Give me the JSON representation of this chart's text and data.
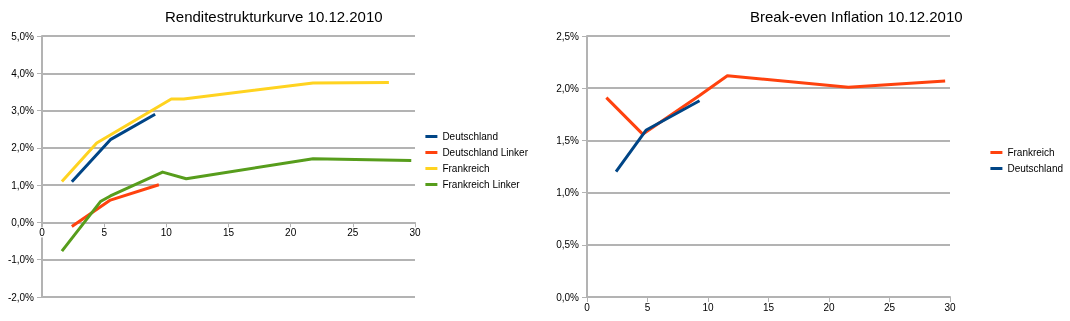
{
  "chart_data": [
    {
      "type": "line",
      "title": "Renditestrukturkurve 10.12.2010",
      "xlim": [
        0,
        30
      ],
      "xticks": [
        0,
        5,
        10,
        15,
        20,
        25,
        30
      ],
      "ylim": [
        -2,
        5
      ],
      "yticks": [
        {
          "value": -2,
          "label": "-2,0%"
        },
        {
          "value": -1,
          "label": "-1,0%"
        },
        {
          "value": 0,
          "label": "0,0%"
        },
        {
          "value": 1,
          "label": "1,0%"
        },
        {
          "value": 2,
          "label": "2,0%"
        },
        {
          "value": 3,
          "label": "3,0%"
        },
        {
          "value": 4,
          "label": "4,0%"
        },
        {
          "value": 5,
          "label": "5,0%"
        }
      ],
      "grid": "y",
      "legend": "right",
      "marker": "none",
      "line_style": "solid",
      "series": [
        {
          "name": "Deutschland",
          "color": "#004586",
          "x": [
            2.4,
            5.5,
            9.1
          ],
          "values": [
            1.09,
            2.22,
            2.9
          ]
        },
        {
          "name": "Deutschland Linker",
          "color": "#ff420e",
          "x": [
            2.4,
            5.5,
            9.4
          ],
          "values": [
            -0.11,
            0.6,
            1.01
          ]
        },
        {
          "name": "Frankreich",
          "color": "#ffd320",
          "x": [
            1.6,
            4.4,
            10.4,
            11.4,
            21.8,
            27.9
          ],
          "values": [
            1.1,
            2.13,
            3.31,
            3.31,
            3.74,
            3.75
          ]
        },
        {
          "name": "Frankreich Linker",
          "color": "#579d1c",
          "x": [
            1.6,
            4.7,
            5.5,
            9.7,
            11.6,
            21.8,
            29.7
          ],
          "values": [
            -0.77,
            0.56,
            0.71,
            1.35,
            1.17,
            1.71,
            1.66
          ]
        }
      ]
    },
    {
      "type": "line",
      "title": "Break-even Inflation 10.12.2010",
      "xlim": [
        0,
        30
      ],
      "xticks": [
        0,
        5,
        10,
        15,
        20,
        25,
        30
      ],
      "ylim": [
        0,
        2.5
      ],
      "yticks": [
        {
          "value": 0,
          "label": "0,0%"
        },
        {
          "value": 0.5,
          "label": "0,5%"
        },
        {
          "value": 1,
          "label": "1,0%"
        },
        {
          "value": 1.5,
          "label": "1,5%"
        },
        {
          "value": 2,
          "label": "2,0%"
        },
        {
          "value": 2.5,
          "label": "2,5%"
        }
      ],
      "grid": "y",
      "legend": "right",
      "marker": "none",
      "line_style": "solid",
      "series": [
        {
          "name": "Frankreich",
          "color": "#ff420e",
          "x": [
            1.6,
            4.6,
            9.3,
            11.6,
            21.6,
            29.6
          ],
          "values": [
            1.91,
            1.56,
            1.93,
            2.12,
            2.01,
            2.07
          ]
        },
        {
          "name": "Deutschland",
          "color": "#004586",
          "x": [
            2.4,
            4.9,
            9.3
          ],
          "values": [
            1.2,
            1.6,
            1.88
          ]
        }
      ]
    }
  ]
}
